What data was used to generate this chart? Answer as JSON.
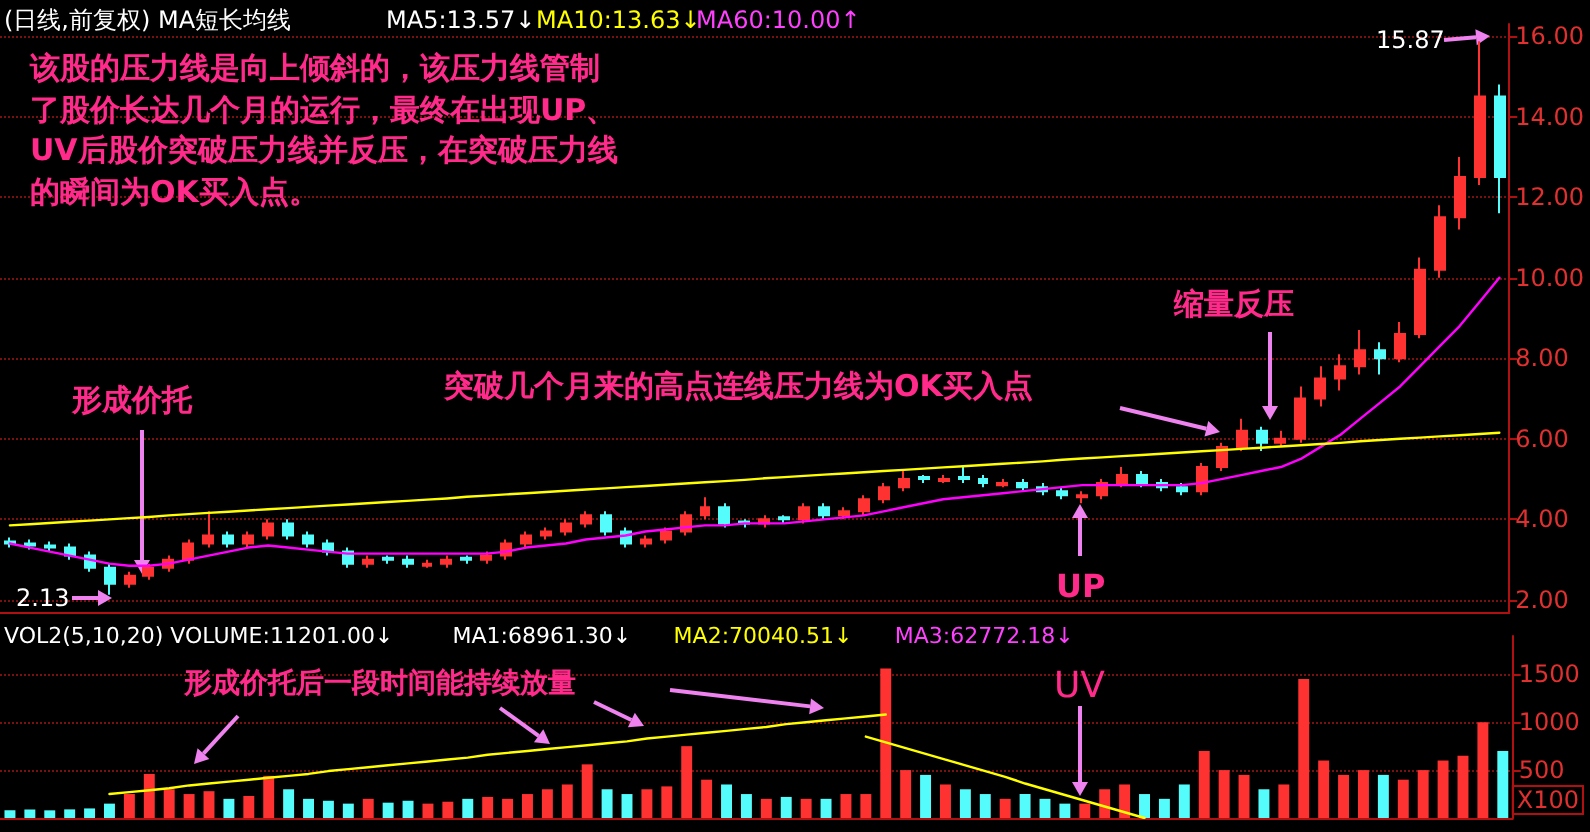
{
  "chart_data": [
    {
      "type": "candlestick",
      "categories": [
        null,
        null,
        null,
        null,
        null,
        null,
        null,
        null,
        null,
        null,
        null,
        null,
        null,
        null,
        null,
        null,
        null,
        null,
        null,
        null,
        null,
        null,
        null,
        null,
        null,
        null,
        null,
        null,
        null,
        null,
        null,
        null,
        null,
        null,
        null,
        null,
        null,
        null,
        null,
        null,
        null,
        null,
        null,
        null,
        null,
        null,
        null,
        null,
        null,
        null,
        null,
        null,
        null,
        null,
        null,
        null,
        null,
        null,
        null,
        null,
        null,
        null,
        null,
        null,
        null,
        null,
        null,
        null,
        null,
        null,
        null,
        null,
        null,
        null,
        null,
        null
      ],
      "ohlc": [
        [
          3.45,
          3.55,
          3.3,
          3.4
        ],
        [
          3.4,
          3.5,
          3.25,
          3.35
        ],
        [
          3.35,
          3.45,
          3.2,
          3.3
        ],
        [
          3.3,
          3.4,
          3.0,
          3.1
        ],
        [
          3.1,
          3.2,
          2.7,
          2.8
        ],
        [
          2.8,
          2.9,
          2.13,
          2.4
        ],
        [
          2.4,
          2.7,
          2.3,
          2.6
        ],
        [
          2.6,
          2.9,
          2.5,
          2.8
        ],
        [
          2.8,
          3.1,
          2.7,
          3.0
        ],
        [
          3.0,
          3.5,
          2.9,
          3.4
        ],
        [
          3.4,
          4.2,
          3.3,
          3.6
        ],
        [
          3.6,
          3.7,
          3.3,
          3.4
        ],
        [
          3.4,
          3.7,
          3.3,
          3.6
        ],
        [
          3.6,
          4.0,
          3.5,
          3.9
        ],
        [
          3.9,
          4.0,
          3.5,
          3.6
        ],
        [
          3.6,
          3.7,
          3.3,
          3.4
        ],
        [
          3.4,
          3.5,
          3.1,
          3.2
        ],
        [
          3.2,
          3.3,
          2.8,
          2.9
        ],
        [
          2.9,
          3.1,
          2.8,
          3.0
        ],
        [
          3.05,
          3.1,
          2.9,
          3.0
        ],
        [
          3.0,
          3.1,
          2.8,
          2.9
        ],
        [
          2.85,
          3.0,
          2.8,
          2.9
        ],
        [
          2.9,
          3.1,
          2.8,
          3.0
        ],
        [
          3.05,
          3.1,
          2.9,
          3.0
        ],
        [
          3.0,
          3.2,
          2.9,
          3.1
        ],
        [
          3.1,
          3.5,
          3.0,
          3.4
        ],
        [
          3.4,
          3.7,
          3.3,
          3.6
        ],
        [
          3.6,
          3.8,
          3.5,
          3.7
        ],
        [
          3.7,
          4.0,
          3.6,
          3.9
        ],
        [
          3.9,
          4.2,
          3.8,
          4.1
        ],
        [
          4.1,
          4.2,
          3.6,
          3.7
        ],
        [
          3.7,
          3.8,
          3.3,
          3.4
        ],
        [
          3.4,
          3.6,
          3.3,
          3.5
        ],
        [
          3.5,
          3.8,
          3.4,
          3.7
        ],
        [
          3.7,
          4.2,
          3.6,
          4.1
        ],
        [
          4.1,
          4.55,
          4.0,
          4.3
        ],
        [
          4.3,
          4.4,
          3.8,
          3.9
        ],
        [
          3.95,
          4.0,
          3.8,
          3.9
        ],
        [
          3.9,
          4.1,
          3.8,
          4.0
        ],
        [
          4.05,
          4.1,
          3.9,
          4.0
        ],
        [
          4.0,
          4.4,
          3.9,
          4.3
        ],
        [
          4.3,
          4.4,
          4.0,
          4.1
        ],
        [
          4.1,
          4.3,
          4.0,
          4.2
        ],
        [
          4.2,
          4.6,
          4.1,
          4.5
        ],
        [
          4.5,
          4.9,
          4.4,
          4.8
        ],
        [
          4.8,
          5.2,
          4.7,
          5.0
        ],
        [
          5.05,
          5.1,
          4.9,
          5.0
        ],
        [
          4.95,
          5.1,
          4.9,
          5.0
        ],
        [
          5.05,
          5.3,
          4.9,
          5.0
        ],
        [
          5.0,
          5.1,
          4.8,
          4.9
        ],
        [
          4.85,
          5.0,
          4.8,
          4.9
        ],
        [
          4.9,
          5.0,
          4.7,
          4.8
        ],
        [
          4.8,
          4.9,
          4.6,
          4.7
        ],
        [
          4.7,
          4.8,
          4.5,
          4.6
        ],
        [
          4.55,
          4.7,
          4.4,
          4.6
        ],
        [
          4.6,
          5.0,
          4.5,
          4.9
        ],
        [
          4.9,
          5.3,
          4.8,
          5.1
        ],
        [
          5.1,
          5.2,
          4.8,
          4.9
        ],
        [
          4.9,
          5.0,
          4.7,
          4.8
        ],
        [
          4.8,
          4.9,
          4.6,
          4.7
        ],
        [
          4.7,
          5.4,
          4.6,
          5.3
        ],
        [
          5.3,
          5.9,
          5.2,
          5.8
        ],
        [
          5.8,
          6.5,
          5.7,
          6.2
        ],
        [
          6.2,
          6.3,
          5.7,
          5.9
        ],
        [
          5.9,
          6.2,
          5.8,
          6.0
        ],
        [
          6.0,
          7.3,
          5.9,
          7.0
        ],
        [
          7.0,
          7.8,
          6.8,
          7.5
        ],
        [
          7.5,
          8.1,
          7.2,
          7.8
        ],
        [
          7.8,
          8.7,
          7.6,
          8.2
        ],
        [
          8.2,
          8.4,
          7.6,
          8.0
        ],
        [
          8.0,
          8.9,
          7.9,
          8.6
        ],
        [
          8.6,
          10.5,
          8.5,
          10.2
        ],
        [
          10.2,
          11.8,
          10.0,
          11.5
        ],
        [
          11.5,
          13.0,
          11.2,
          12.5
        ],
        [
          12.5,
          15.87,
          12.3,
          14.5
        ],
        [
          14.5,
          14.8,
          11.6,
          12.5
        ]
      ],
      "colors": [
        "#54fcfc",
        "#54fcfc",
        "#54fcfc",
        "#54fcfc",
        "#54fcfc",
        "#54fcfc",
        "#ff3232",
        "#ff3232",
        "#ff3232",
        "#ff3232",
        "#ff3232",
        "#54fcfc",
        "#ff3232",
        "#ff3232",
        "#54fcfc",
        "#54fcfc",
        "#54fcfc",
        "#54fcfc",
        "#ff3232",
        "#54fcfc",
        "#54fcfc",
        "#ff3232",
        "#ff3232",
        "#54fcfc",
        "#ff3232",
        "#ff3232",
        "#ff3232",
        "#ff3232",
        "#ff3232",
        "#ff3232",
        "#54fcfc",
        "#54fcfc",
        "#ff3232",
        "#ff3232",
        "#ff3232",
        "#ff3232",
        "#54fcfc",
        "#54fcfc",
        "#ff3232",
        "#54fcfc",
        "#ff3232",
        "#54fcfc",
        "#ff3232",
        "#ff3232",
        "#ff3232",
        "#ff3232",
        "#54fcfc",
        "#ff3232",
        "#54fcfc",
        "#54fcfc",
        "#ff3232",
        "#54fcfc",
        "#54fcfc",
        "#54fcfc",
        "#ff3232",
        "#ff3232",
        "#ff3232",
        "#54fcfc",
        "#54fcfc",
        "#54fcfc",
        "#ff3232",
        "#ff3232",
        "#ff3232",
        "#54fcfc",
        "#ff3232",
        "#ff3232",
        "#ff3232",
        "#ff3232",
        "#ff3232",
        "#54fcfc",
        "#ff3232",
        "#ff3232",
        "#ff3232",
        "#ff3232",
        "#ff3232",
        "#54fcfc"
      ],
      "series": [
        {
          "type": "line",
          "color": "#ff00ff",
          "values": [
            3.4,
            3.3,
            3.2,
            3.1,
            3.0,
            2.9,
            2.85,
            2.85,
            2.9,
            3.0,
            3.1,
            3.2,
            3.3,
            3.35,
            3.3,
            3.25,
            3.2,
            3.15,
            3.15,
            3.15,
            3.15,
            3.15,
            3.15,
            3.15,
            3.15,
            3.2,
            3.3,
            3.35,
            3.4,
            3.5,
            3.55,
            3.6,
            3.7,
            3.75,
            3.8,
            3.85,
            3.85,
            3.9,
            3.9,
            3.9,
            3.95,
            4.0,
            4.05,
            4.1,
            4.2,
            4.3,
            4.4,
            4.5,
            4.55,
            4.6,
            4.65,
            4.7,
            4.75,
            4.8,
            4.85,
            4.85,
            4.85,
            4.85,
            4.85,
            4.85,
            4.9,
            5.0,
            5.1,
            5.2,
            5.3,
            5.5,
            5.8,
            6.1,
            6.5,
            6.9,
            7.3,
            7.8,
            8.3,
            8.8,
            9.4,
            10.0
          ]
        },
        {
          "type": "line",
          "color": "#ffff00",
          "values": [
            3.85,
            3.88,
            3.91,
            3.94,
            3.97,
            4.0,
            4.03,
            4.06,
            4.1,
            4.13,
            4.16,
            4.19,
            4.22,
            4.25,
            4.28,
            4.31,
            4.34,
            4.37,
            4.4,
            4.43,
            4.46,
            4.49,
            4.52,
            4.56,
            4.59,
            4.62,
            4.65,
            4.68,
            4.71,
            4.74,
            4.77,
            4.8,
            4.83,
            4.86,
            4.89,
            4.92,
            4.95,
            4.98,
            5.02,
            5.05,
            5.08,
            5.11,
            5.14,
            5.17,
            5.2,
            5.23,
            5.26,
            5.29,
            5.32,
            5.35,
            5.38,
            5.41,
            5.44,
            5.48,
            5.51,
            5.54,
            5.57,
            5.6,
            5.63,
            5.66,
            5.69,
            5.72,
            5.75,
            5.78,
            5.81,
            5.84,
            5.87,
            5.9,
            5.94,
            5.97,
            6.0,
            6.03,
            6.06,
            6.09,
            6.12,
            6.15
          ]
        }
      ],
      "ylim": [
        1.7,
        16.3
      ],
      "yticks": [
        {
          "value": 2,
          "label": "2.00"
        },
        {
          "value": 4,
          "label": "4.00"
        },
        {
          "value": 6,
          "label": "6.00"
        },
        {
          "value": 8,
          "label": "8.00"
        },
        {
          "value": 10,
          "label": "10.00"
        },
        {
          "value": 12,
          "label": "12.00"
        },
        {
          "value": 14,
          "label": "14.00"
        },
        {
          "value": 16,
          "label": "16.00"
        }
      ],
      "tick_labels": "y",
      "grid": "y",
      "marker": "none",
      "line_style": "solid",
      "annotations": [
        "(日线,前复权) MA短长均线",
        "MA5:13.57↓",
        "MA10:13.63↓",
        "MA60:10.00↑",
        "该股的压力线是向上倾斜的，该压力线管制",
        "了股价长达几个月的运行，最终在出现UP、",
        "UV后股价突破压力线并反压，在突破压力线",
        "的瞬间为OK买入点。",
        "形成价托",
        "突破几个月来的高点连线压力线为OK买入点",
        "缩量反压",
        "UP",
        "15.87",
        "2.13"
      ]
    },
    {
      "type": "bar",
      "categories": [
        null,
        null,
        null,
        null,
        null,
        null,
        null,
        null,
        null,
        null,
        null,
        null,
        null,
        null,
        null,
        null,
        null,
        null,
        null,
        null,
        null,
        null,
        null,
        null,
        null,
        null,
        null,
        null,
        null,
        null,
        null,
        null,
        null,
        null,
        null,
        null,
        null,
        null,
        null,
        null,
        null,
        null,
        null,
        null,
        null,
        null,
        null,
        null,
        null,
        null,
        null,
        null,
        null,
        null,
        null,
        null,
        null,
        null,
        null,
        null,
        null,
        null,
        null,
        null,
        null,
        null,
        null,
        null,
        null,
        null,
        null,
        null,
        null,
        null,
        null,
        null
      ],
      "values": [
        80,
        90,
        80,
        90,
        100,
        150,
        250,
        460,
        300,
        250,
        280,
        200,
        230,
        440,
        300,
        200,
        180,
        150,
        200,
        160,
        180,
        150,
        170,
        200,
        220,
        200,
        250,
        300,
        350,
        560,
        300,
        250,
        300,
        330,
        750,
        400,
        350,
        250,
        200,
        220,
        200,
        200,
        250,
        250,
        1560,
        500,
        450,
        350,
        300,
        250,
        200,
        250,
        200,
        150,
        150,
        300,
        350,
        250,
        200,
        350,
        700,
        500,
        450,
        300,
        350,
        1450,
        600,
        450,
        500,
        450,
        400,
        500,
        600,
        650,
        1000,
        700
      ],
      "colors": [
        "#54fcfc",
        "#54fcfc",
        "#54fcfc",
        "#54fcfc",
        "#54fcfc",
        "#54fcfc",
        "#ff3232",
        "#ff3232",
        "#ff3232",
        "#ff3232",
        "#ff3232",
        "#54fcfc",
        "#ff3232",
        "#ff3232",
        "#54fcfc",
        "#54fcfc",
        "#54fcfc",
        "#54fcfc",
        "#ff3232",
        "#54fcfc",
        "#54fcfc",
        "#ff3232",
        "#ff3232",
        "#54fcfc",
        "#ff3232",
        "#ff3232",
        "#ff3232",
        "#ff3232",
        "#ff3232",
        "#ff3232",
        "#54fcfc",
        "#54fcfc",
        "#ff3232",
        "#ff3232",
        "#ff3232",
        "#ff3232",
        "#54fcfc",
        "#54fcfc",
        "#ff3232",
        "#54fcfc",
        "#ff3232",
        "#54fcfc",
        "#ff3232",
        "#ff3232",
        "#ff3232",
        "#ff3232",
        "#54fcfc",
        "#ff3232",
        "#54fcfc",
        "#54fcfc",
        "#ff3232",
        "#54fcfc",
        "#54fcfc",
        "#54fcfc",
        "#ff3232",
        "#ff3232",
        "#ff3232",
        "#54fcfc",
        "#54fcfc",
        "#54fcfc",
        "#ff3232",
        "#ff3232",
        "#ff3232",
        "#54fcfc",
        "#ff3232",
        "#ff3232",
        "#ff3232",
        "#ff3232",
        "#ff3232",
        "#54fcfc",
        "#ff3232",
        "#ff3232",
        "#ff3232",
        "#ff3232",
        "#ff3232",
        "#54fcfc"
      ],
      "series": [
        {
          "type": "line",
          "color": "#ffff00",
          "values": [
            null,
            null,
            null,
            null,
            null,
            250,
            270,
            290,
            310,
            340,
            360,
            380,
            400,
            420,
            440,
            460,
            490,
            510,
            530,
            550,
            570,
            590,
            610,
            630,
            660,
            680,
            700,
            720,
            740,
            760,
            780,
            800,
            830,
            850,
            870,
            890,
            910,
            930,
            950,
            980,
            1000,
            1020,
            1040,
            1060,
            1080,
            null,
            null,
            null,
            null,
            null,
            null,
            null,
            null,
            null,
            null,
            null,
            null,
            null,
            null,
            null,
            null,
            null,
            null,
            null,
            null,
            null,
            null,
            null,
            null,
            null,
            null,
            null,
            null,
            null,
            null,
            null
          ]
        },
        {
          "type": "line",
          "color": "#ffff00",
          "values": [
            null,
            null,
            null,
            null,
            null,
            null,
            null,
            null,
            null,
            null,
            null,
            null,
            null,
            null,
            null,
            null,
            null,
            null,
            null,
            null,
            null,
            null,
            null,
            null,
            null,
            null,
            null,
            null,
            null,
            null,
            null,
            null,
            null,
            null,
            null,
            null,
            null,
            null,
            null,
            null,
            null,
            null,
            null,
            850,
            790,
            730,
            670,
            610,
            550,
            490,
            430,
            360,
            300,
            240,
            180,
            120,
            60,
            0,
            null,
            null,
            null,
            null,
            null,
            null,
            null,
            null,
            null,
            null,
            null,
            null,
            null,
            null,
            null,
            null,
            null,
            null
          ]
        }
      ],
      "ylim": [
        0,
        1900
      ],
      "yticks": [
        500,
        1000,
        1500
      ],
      "ylabel": "X100",
      "tick_labels": "y",
      "grid": "y",
      "marker": "none",
      "line_style": "solid",
      "annotations": [
        "VOL2(5,10,20) VOLUME:11201.00↓",
        "MA1:68961.30↓",
        "MA2:70040.51↓",
        "MA3:62772.18↓",
        "形成价托后一段时间能持续放量",
        "UV"
      ]
    }
  ]
}
